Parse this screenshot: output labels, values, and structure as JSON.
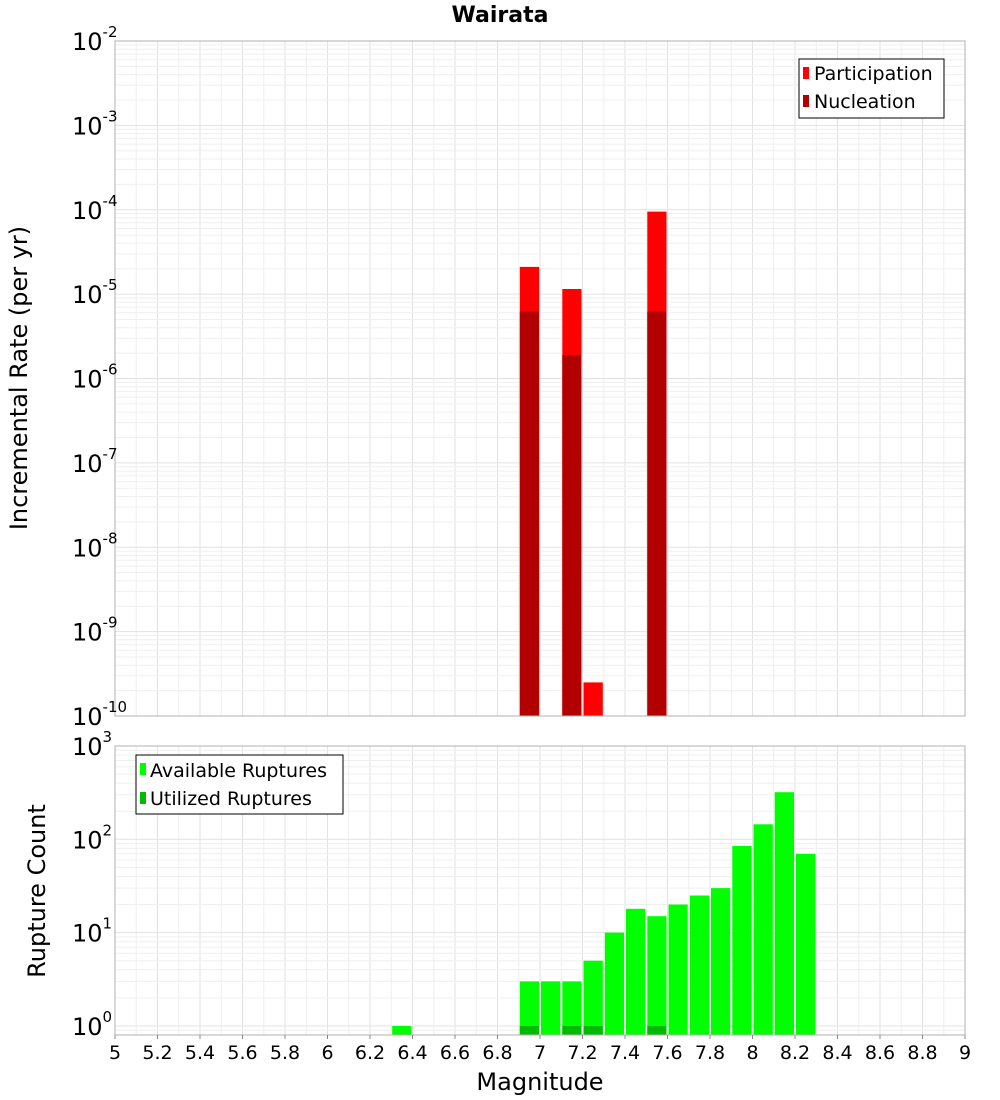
{
  "chart_data": [
    {
      "type": "bar",
      "title": "Wairata",
      "xlabel": "",
      "ylabel": "Incremental Rate (per yr)",
      "xlim": [
        5,
        9
      ],
      "ylim": [
        1e-10,
        0.01
      ],
      "yscale": "log",
      "bin_width": 0.1,
      "ytick_exponents": [
        -2,
        -3,
        -4,
        -5,
        -6,
        -7,
        -8,
        -9,
        -10
      ],
      "ytick_base": "10",
      "legend_position": "top-right",
      "series": [
        {
          "name": "Participation",
          "color": "#ff0000",
          "x": [
            6.95,
            7.15,
            7.25,
            7.55
          ],
          "values": [
            2.1e-05,
            1.15e-05,
            2.5e-10,
            9.5e-05
          ]
        },
        {
          "name": "Nucleation",
          "color": "#b20000",
          "x": [
            6.95,
            7.15,
            7.55
          ],
          "values": [
            6.2e-06,
            1.9e-06,
            6.2e-06
          ]
        }
      ]
    },
    {
      "type": "bar",
      "title": "",
      "xlabel": "Magnitude",
      "ylabel": "Rupture Count",
      "xlim": [
        5,
        9
      ],
      "ylim": [
        0.8,
        1000
      ],
      "yscale": "log",
      "bin_width": 0.1,
      "ytick_exponents": [
        3,
        2,
        1,
        0
      ],
      "ytick_base": "10",
      "legend_position": "top-left",
      "xticks": [
        "5",
        "5.2",
        "5.4",
        "5.6",
        "5.8",
        "6",
        "6.2",
        "6.4",
        "6.6",
        "6.8",
        "7",
        "7.2",
        "7.4",
        "7.6",
        "7.8",
        "8",
        "8.2",
        "8.4",
        "8.6",
        "8.8",
        "9"
      ],
      "series": [
        {
          "name": "Available Ruptures",
          "color": "#00ff00",
          "x": [
            6.35,
            6.95,
            7.05,
            7.15,
            7.25,
            7.35,
            7.45,
            7.55,
            7.65,
            7.75,
            7.85,
            7.95,
            8.05,
            8.15,
            8.25
          ],
          "values": [
            1,
            3,
            3,
            3,
            5,
            10,
            18,
            15,
            20,
            25,
            30,
            85,
            145,
            320,
            70
          ]
        },
        {
          "name": "Utilized Ruptures",
          "color": "#00bb00",
          "x": [
            6.95,
            7.15,
            7.25,
            7.55
          ],
          "values": [
            1,
            1,
            1,
            1
          ]
        }
      ]
    }
  ]
}
